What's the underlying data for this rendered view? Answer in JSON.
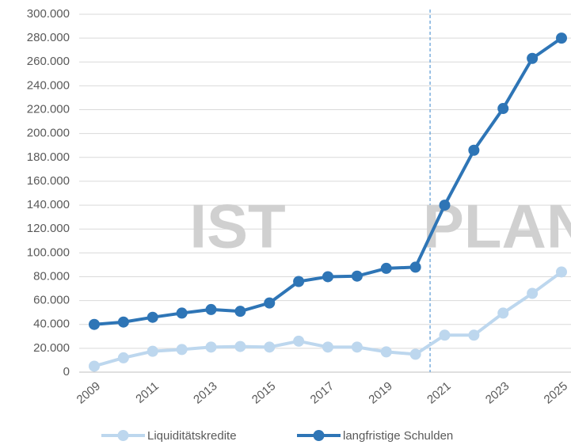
{
  "chart_data": {
    "type": "line",
    "x": [
      2009,
      2010,
      2011,
      2012,
      2013,
      2014,
      2015,
      2016,
      2017,
      2018,
      2019,
      2020,
      2021,
      2022,
      2023,
      2024,
      2025
    ],
    "series": [
      {
        "name": "Liquiditätskredite",
        "color": "#bdd7ee",
        "values": [
          5000,
          12000,
          17500,
          19000,
          21000,
          21500,
          21000,
          26000,
          21000,
          21000,
          17000,
          15000,
          31000,
          31000,
          49500,
          66000,
          84000
        ]
      },
      {
        "name": "langfristige Schulden",
        "color": "#2e75b6",
        "values": [
          40000,
          42000,
          46000,
          49500,
          52500,
          51000,
          58000,
          76000,
          80000,
          80500,
          87000,
          88000,
          140000,
          186000,
          221000,
          263000,
          280000
        ]
      }
    ],
    "xlim": [
      2009,
      2025
    ],
    "xticks": [
      2009,
      2011,
      2013,
      2015,
      2017,
      2019,
      2021,
      2023,
      2025
    ],
    "ylim": [
      0,
      300000
    ],
    "yticks": [
      0,
      {
        "value": 20000,
        "label": "20.000"
      },
      {
        "value": 40000,
        "label": "40.000"
      },
      {
        "value": 60000,
        "label": "60.000"
      },
      {
        "value": 80000,
        "label": "80.000"
      },
      {
        "value": 100000,
        "label": "100.000"
      },
      {
        "value": 120000,
        "label": "120.000"
      },
      {
        "value": 140000,
        "label": "140.000"
      },
      {
        "value": 160000,
        "label": "160.000"
      },
      {
        "value": 180000,
        "label": "180.000"
      },
      {
        "value": 200000,
        "label": "200.000"
      },
      {
        "value": 220000,
        "label": "220.000"
      },
      {
        "value": 240000,
        "label": "240.000"
      },
      {
        "value": 260000,
        "label": "260.000"
      },
      {
        "value": 280000,
        "label": "280.000"
      },
      {
        "value": 300000,
        "label": "300.000"
      }
    ],
    "grid": true,
    "vline_x": 2020.5,
    "annotations": [
      "IST",
      "PLAN"
    ],
    "legend": "bottom"
  }
}
